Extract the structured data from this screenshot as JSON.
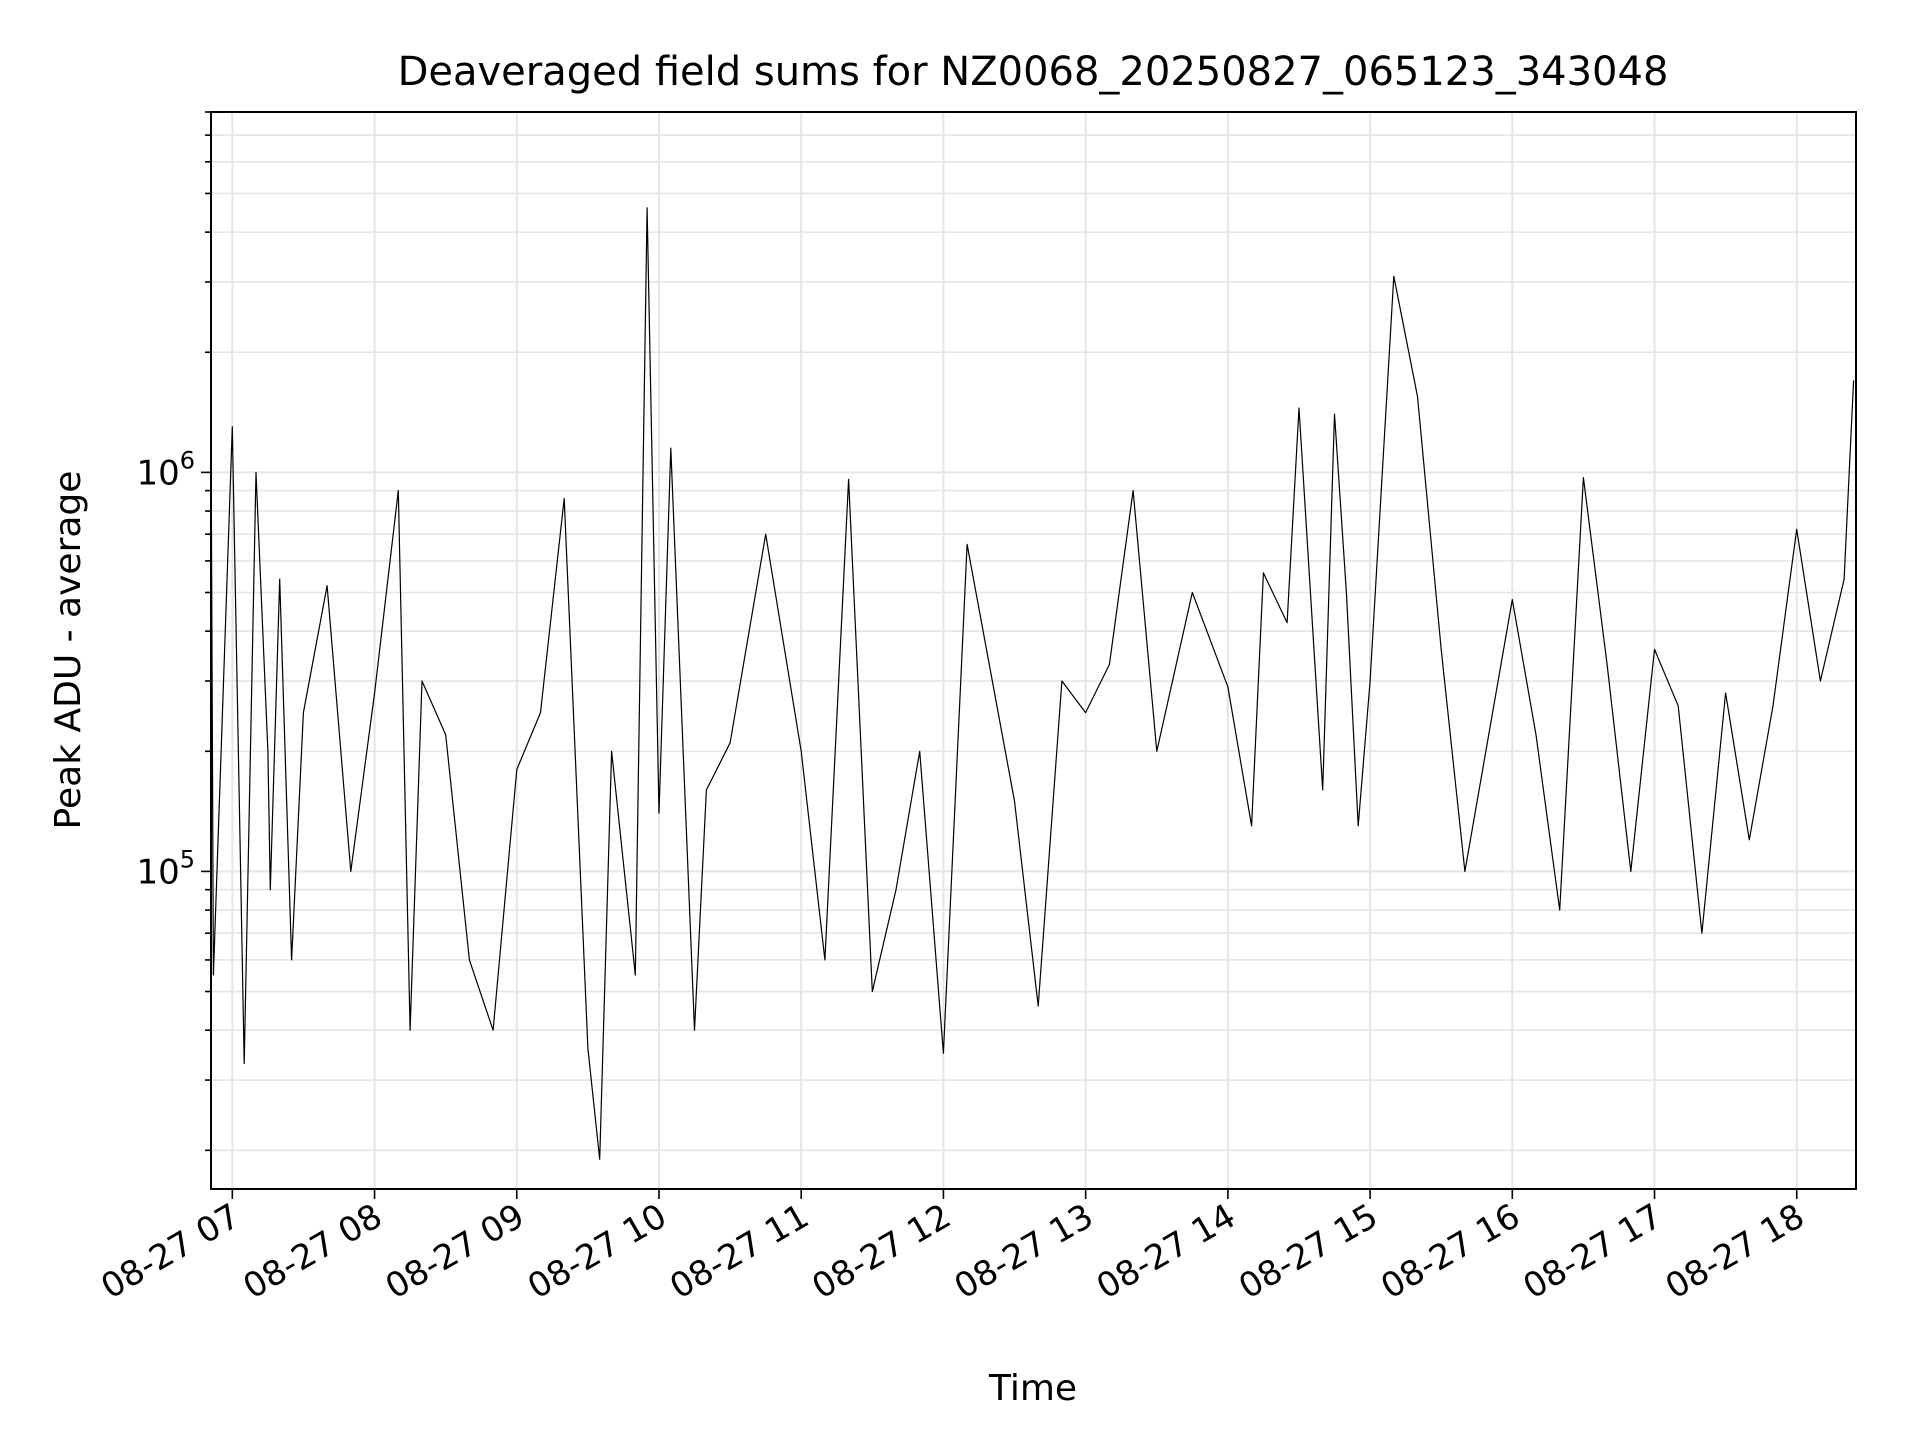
{
  "chart_data": {
    "type": "line",
    "title": "Deaveraged field sums for NZ0068_20250827_065123_343048",
    "xlabel": "Time",
    "ylabel": "Peak ADU - average",
    "y_scale": "log",
    "ylim": [
      16000,
      8000000
    ],
    "xlim": [
      "2025-08-27 06:51",
      "2025-08-27 18:25"
    ],
    "x_ticks": [
      "08-27 07",
      "08-27 08",
      "08-27 09",
      "08-27 10",
      "08-27 11",
      "08-27 12",
      "08-27 13",
      "08-27 14",
      "08-27 15",
      "08-27 16",
      "08-27 17",
      "08-27 18"
    ],
    "y_ticks": [
      {
        "base": "10",
        "exp": "5",
        "value": 100000
      },
      {
        "base": "10",
        "exp": "6",
        "value": 1000000
      }
    ],
    "grid": true,
    "line_color": "#000000",
    "grid_color": "#e5e5e5",
    "series": [
      {
        "x": [
          "2025-08-27 06:51",
          "2025-08-27 06:52",
          "2025-08-27 07:00",
          "2025-08-27 07:05",
          "2025-08-27 07:10",
          "2025-08-27 07:15",
          "2025-08-27 07:16",
          "2025-08-27 07:20",
          "2025-08-27 07:25",
          "2025-08-27 07:30",
          "2025-08-27 07:40",
          "2025-08-27 07:50",
          "2025-08-27 08:00",
          "2025-08-27 08:10",
          "2025-08-27 08:15",
          "2025-08-27 08:20",
          "2025-08-27 08:30",
          "2025-08-27 08:40",
          "2025-08-27 08:50",
          "2025-08-27 09:00",
          "2025-08-27 09:10",
          "2025-08-27 09:20",
          "2025-08-27 09:30",
          "2025-08-27 09:35",
          "2025-08-27 09:40",
          "2025-08-27 09:50",
          "2025-08-27 09:55",
          "2025-08-27 10:00",
          "2025-08-27 10:05",
          "2025-08-27 10:15",
          "2025-08-27 10:20",
          "2025-08-27 10:30",
          "2025-08-27 10:45",
          "2025-08-27 11:00",
          "2025-08-27 11:10",
          "2025-08-27 11:20",
          "2025-08-27 11:30",
          "2025-08-27 11:40",
          "2025-08-27 11:50",
          "2025-08-27 12:00",
          "2025-08-27 12:10",
          "2025-08-27 12:30",
          "2025-08-27 12:40",
          "2025-08-27 12:50",
          "2025-08-27 13:00",
          "2025-08-27 13:10",
          "2025-08-27 13:20",
          "2025-08-27 13:30",
          "2025-08-27 13:45",
          "2025-08-27 14:00",
          "2025-08-27 14:10",
          "2025-08-27 14:15",
          "2025-08-27 14:25",
          "2025-08-27 14:30",
          "2025-08-27 14:40",
          "2025-08-27 14:45",
          "2025-08-27 14:50",
          "2025-08-27 14:55",
          "2025-08-27 15:00",
          "2025-08-27 15:10",
          "2025-08-27 15:20",
          "2025-08-27 15:30",
          "2025-08-27 15:40",
          "2025-08-27 16:00",
          "2025-08-27 16:10",
          "2025-08-27 16:20",
          "2025-08-27 16:30",
          "2025-08-27 16:40",
          "2025-08-27 16:50",
          "2025-08-27 17:00",
          "2025-08-27 17:10",
          "2025-08-27 17:20",
          "2025-08-27 17:30",
          "2025-08-27 17:40",
          "2025-08-27 17:50",
          "2025-08-27 18:00",
          "2025-08-27 18:10",
          "2025-08-27 18:20",
          "2025-08-27 18:24"
        ],
        "values": [
          1350000,
          55000,
          1300000,
          33000,
          1000000,
          200000,
          90000,
          540000,
          60000,
          250000,
          520000,
          100000,
          280000,
          900000,
          40000,
          300000,
          220000,
          60000,
          40000,
          180000,
          250000,
          860000,
          36000,
          19000,
          200000,
          55000,
          4600000,
          140000,
          1150000,
          40000,
          160000,
          210000,
          700000,
          200000,
          60000,
          960000,
          50000,
          90000,
          200000,
          35000,
          660000,
          150000,
          46000,
          300000,
          250000,
          330000,
          900000,
          200000,
          500000,
          290000,
          130000,
          560000,
          420000,
          1450000,
          160000,
          1400000,
          500000,
          130000,
          300000,
          3100000,
          1550000,
          360000,
          100000,
          480000,
          220000,
          80000,
          970000,
          330000,
          100000,
          360000,
          260000,
          70000,
          280000,
          120000,
          260000,
          720000,
          300000,
          540000,
          1700000
        ]
      }
    ]
  }
}
